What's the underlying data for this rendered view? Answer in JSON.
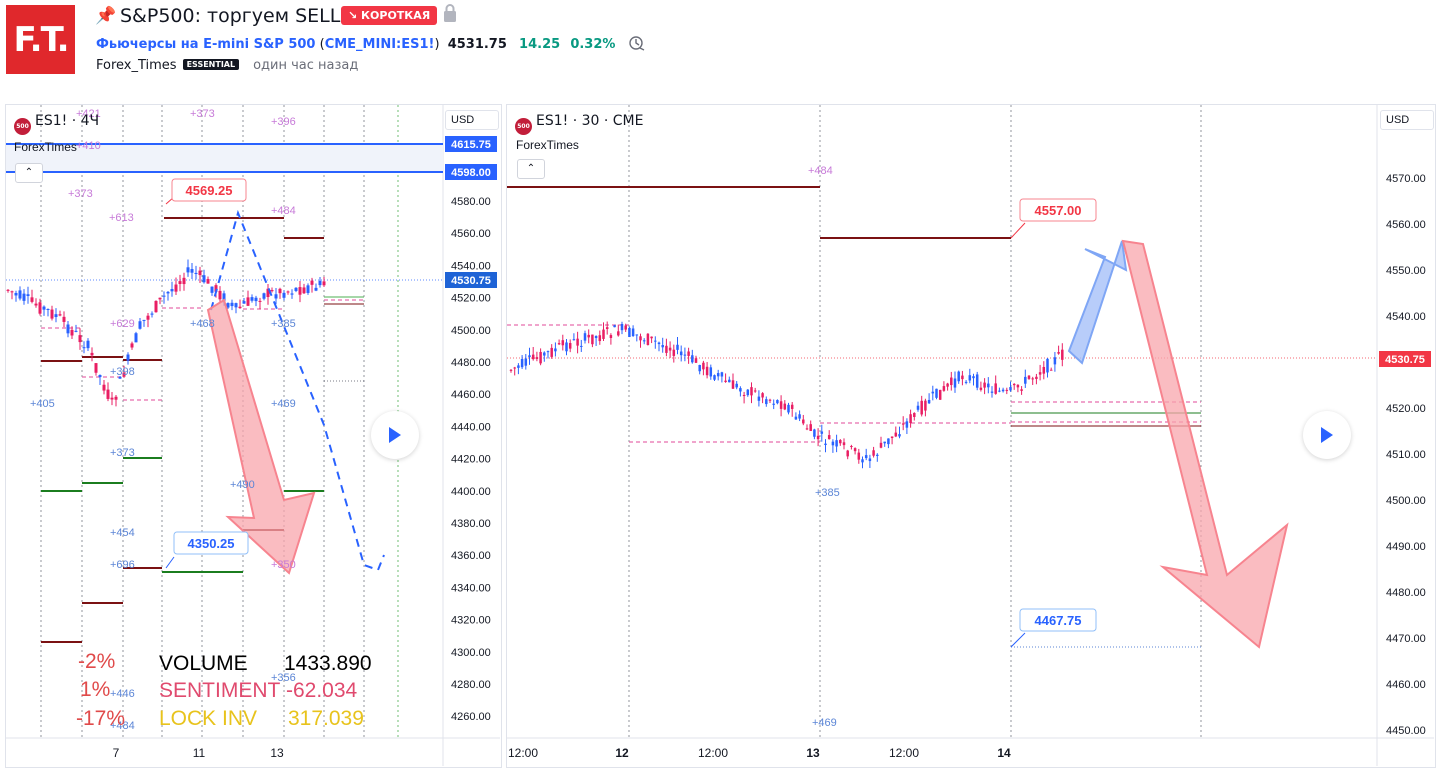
{
  "header": {
    "logo_text": "F.T.",
    "pin_icon": "pin-icon",
    "title": "S&P500: торгуем SELL.",
    "direction_badge": "↘ КОРОТКАЯ",
    "lock_icon": "lock-icon",
    "symbol_desc": "Фьючерсы на E-mini S&P 500",
    "symbol_paren_open": " (",
    "symbol_ticker": "CME_MINI:ES1!",
    "symbol_paren_close": ")",
    "price": "4531.75",
    "change": "14.25",
    "change_pct": "0.32%",
    "author": "Forex_Times",
    "author_badge": "ESSENTIAL",
    "time_ago": "один час назад",
    "colors": {
      "brand": "#e0282c",
      "short": "#f23645",
      "up": "#089981",
      "link": "#2962ff"
    }
  },
  "left_chart": {
    "symbol_badge": "500",
    "title": "ES1! · 4Ч",
    "study": "ForexTimes",
    "currency": "USD",
    "price_axis": [
      "4580.00",
      "4560.00",
      "4540.00",
      "4520.00",
      "4500.00",
      "4480.00",
      "4460.00",
      "4440.00",
      "4420.00",
      "4400.00",
      "4380.00",
      "4360.00",
      "4340.00",
      "4320.00",
      "4300.00",
      "4280.00",
      "4260.00"
    ],
    "price_tags": [
      {
        "label": "4615.75",
        "color": "#2962ff"
      },
      {
        "label": "4598.00",
        "color": "#2962ff"
      },
      {
        "label": "4530.75",
        "color": "#2962ff"
      }
    ],
    "time_axis": [
      "7",
      "11",
      "13"
    ],
    "callouts": [
      {
        "label": "4569.25",
        "color": "#f23645"
      },
      {
        "label": "4350.25",
        "color": "#2962ff"
      }
    ],
    "level_labels": [
      {
        "text": "+421"
      },
      {
        "text": "+373"
      },
      {
        "text": "+396"
      },
      {
        "text": "+410"
      },
      {
        "text": "+373"
      },
      {
        "text": "+613"
      },
      {
        "text": "+484"
      },
      {
        "text": "+629"
      },
      {
        "text": "+468"
      },
      {
        "text": "+385"
      },
      {
        "text": "+398"
      },
      {
        "text": "+405"
      },
      {
        "text": "+469"
      },
      {
        "text": "+373"
      },
      {
        "text": "+490"
      },
      {
        "text": "+454"
      },
      {
        "text": "+696"
      },
      {
        "text": "+350"
      },
      {
        "text": "+356"
      },
      {
        "text": "+446"
      },
      {
        "text": "+484"
      }
    ],
    "stats": {
      "pcts": [
        "-2%",
        "1%",
        "-17%"
      ],
      "rows": [
        {
          "label": "VOLUME",
          "value": "1433.890",
          "color": "#000000"
        },
        {
          "label": "SENTIMENT",
          "value": "-62.034",
          "color": "#e04a6e"
        },
        {
          "label": "LOCK INV",
          "value": "317.039",
          "color": "#e8c31c"
        }
      ]
    }
  },
  "right_chart": {
    "symbol_badge": "500",
    "title": "ES1! · 30 · CME",
    "study": "ForexTimes",
    "currency": "USD",
    "price_axis": [
      "4570.00",
      "4560.00",
      "4550.00",
      "4540.00",
      "4530.00",
      "4520.00",
      "4510.00",
      "4500.00",
      "4490.00",
      "4480.00",
      "4470.00",
      "4460.00",
      "4450.00"
    ],
    "price_tag": {
      "label": "4530.75",
      "color": "#f23645"
    },
    "time_axis": [
      "12:00",
      "12",
      "12:00",
      "13",
      "12:00",
      "14"
    ],
    "callouts": [
      {
        "label": "4557.00",
        "color": "#f23645"
      },
      {
        "label": "4467.75",
        "color": "#2962ff"
      }
    ],
    "level_labels": [
      {
        "text": "+484"
      },
      {
        "text": "+385"
      },
      {
        "text": "+469"
      }
    ]
  }
}
